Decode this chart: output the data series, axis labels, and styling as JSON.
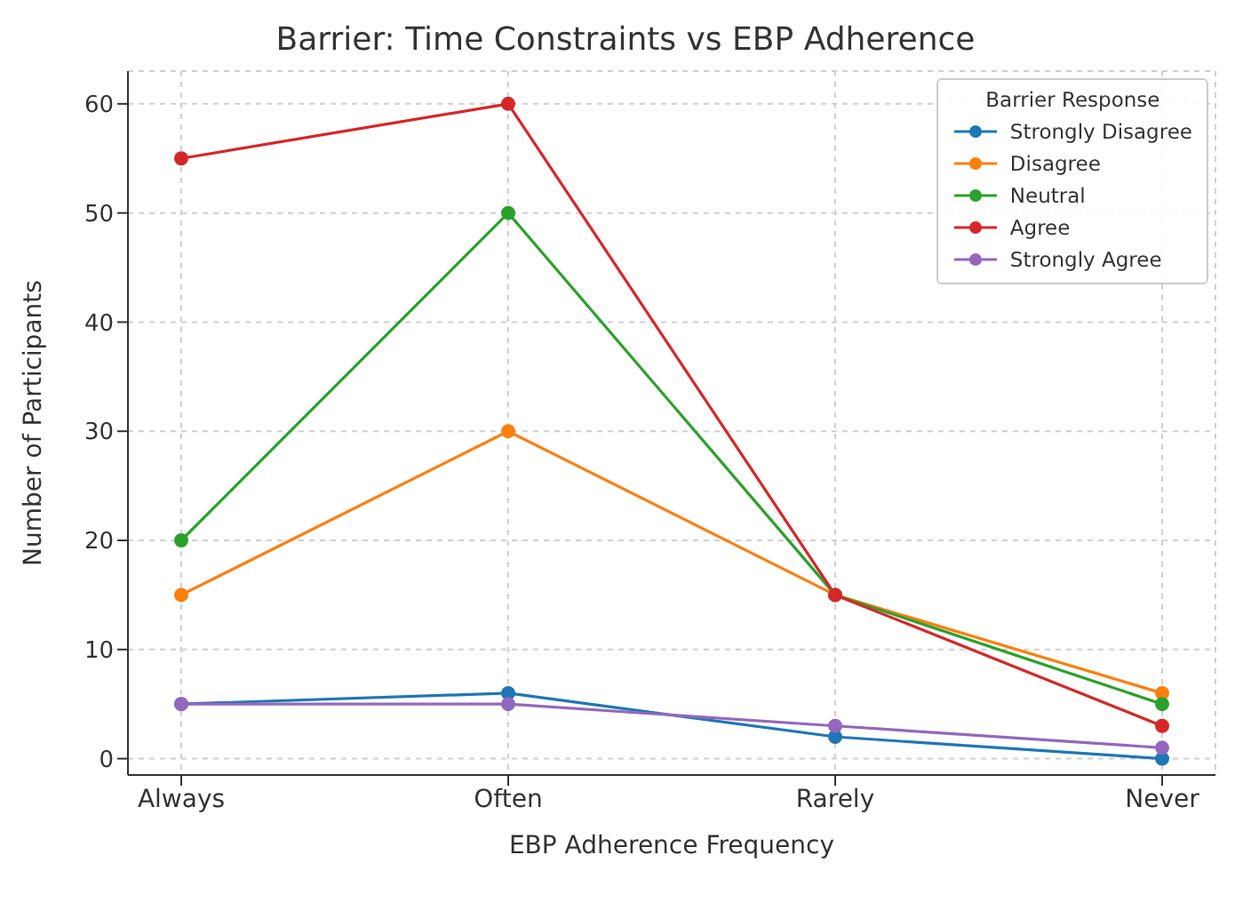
{
  "chart_data": {
    "type": "line",
    "title": "Barrier: Time Constraints vs EBP Adherence",
    "xlabel": "EBP Adherence Frequency",
    "ylabel": "Number of Participants",
    "legend_title": "Barrier Response",
    "categories": [
      "Always",
      "Often",
      "Rarely",
      "Never"
    ],
    "series": [
      {
        "name": "Strongly Disagree",
        "color": "#1f77b4",
        "values": [
          5,
          6,
          2,
          0
        ]
      },
      {
        "name": "Disagree",
        "color": "#ff7f0e",
        "values": [
          15,
          30,
          15,
          6
        ]
      },
      {
        "name": "Neutral",
        "color": "#2ca02c",
        "values": [
          20,
          50,
          15,
          5
        ]
      },
      {
        "name": "Agree",
        "color": "#d62728",
        "values": [
          55,
          60,
          15,
          3
        ]
      },
      {
        "name": "Strongly Agree",
        "color": "#9467bd",
        "values": [
          5,
          5,
          3,
          1
        ]
      }
    ],
    "ylim": [
      -1.5,
      63
    ],
    "yticks": [
      0,
      10,
      20,
      30,
      40,
      50,
      60
    ],
    "grid": true,
    "legend": "top right",
    "marker": "circle",
    "line_style": "solid"
  }
}
